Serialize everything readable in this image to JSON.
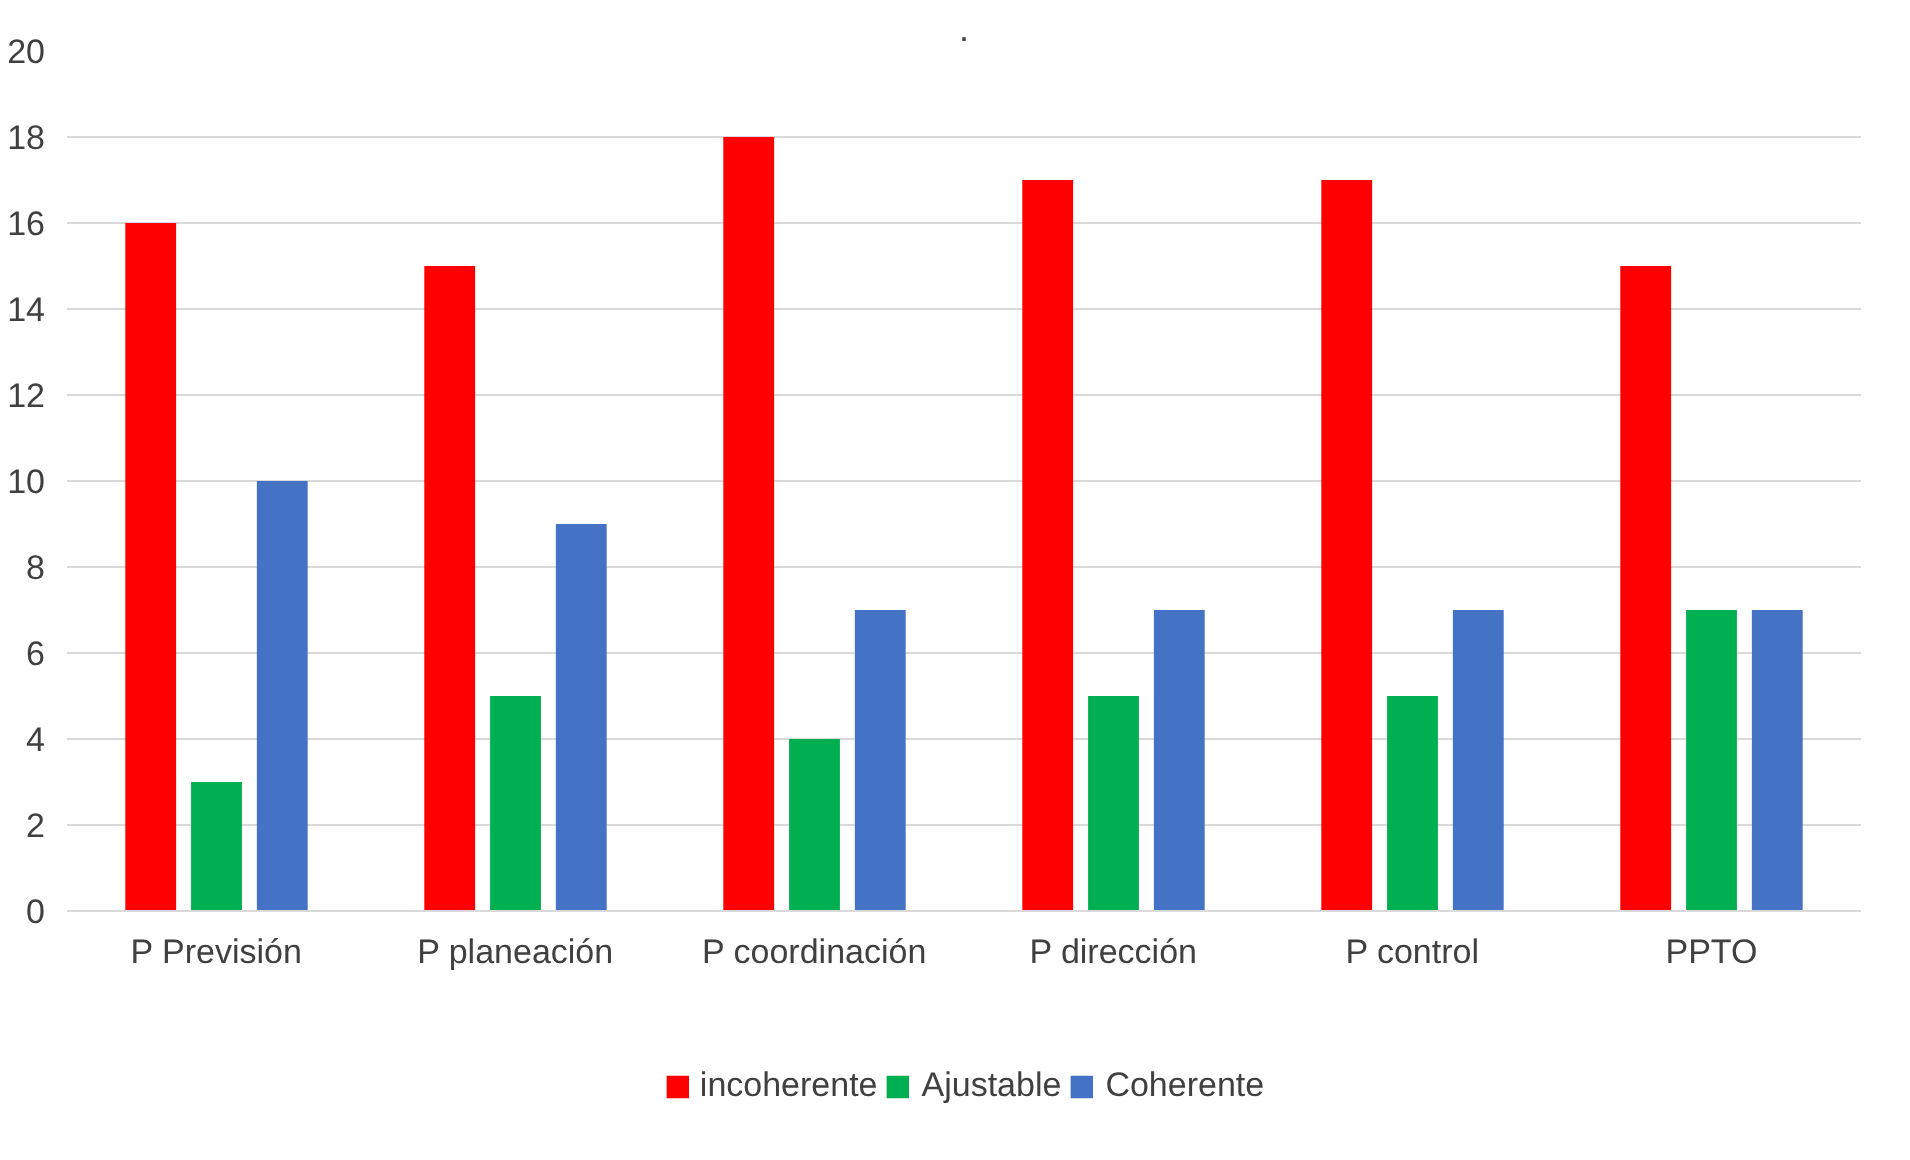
{
  "chart_data": {
    "type": "bar",
    "title": ".",
    "categories": [
      "P Previsión",
      "P planeación",
      "P coordinación",
      "P dirección",
      "P control",
      "PPTO"
    ],
    "series": [
      {
        "name": "incoherente",
        "color": "#ff0000",
        "values": [
          16,
          15,
          18,
          17,
          17,
          15
        ]
      },
      {
        "name": "Ajustable",
        "color": "#00b050",
        "values": [
          3,
          5,
          4,
          5,
          5,
          7
        ]
      },
      {
        "name": "Coherente",
        "color": "#4472c4",
        "values": [
          10,
          9,
          7,
          7,
          7,
          7
        ]
      }
    ],
    "ylim": [
      0,
      20
    ],
    "yticks": [
      0,
      2,
      4,
      6,
      8,
      10,
      12,
      14,
      16,
      18,
      20
    ],
    "grid": "y",
    "legend": "bottom"
  }
}
